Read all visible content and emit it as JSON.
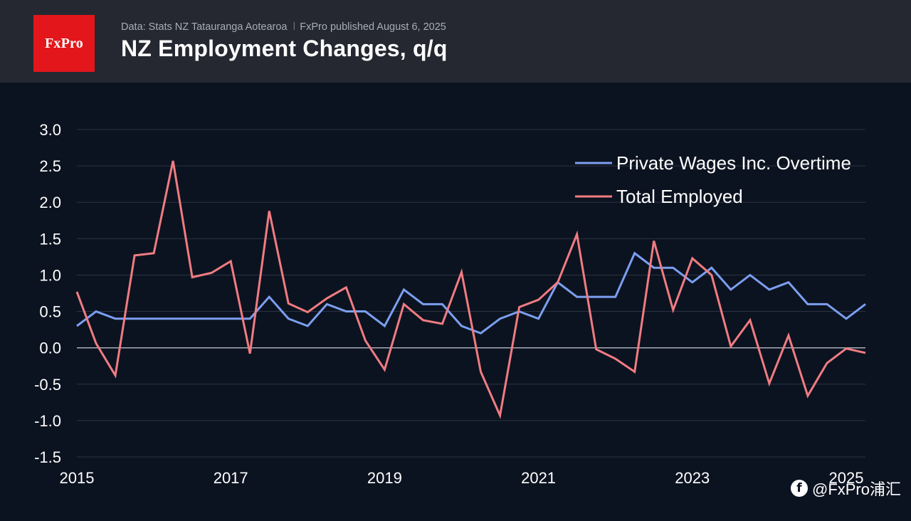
{
  "header": {
    "logo_text": "FxPro",
    "source": "Data: Stats NZ Tatauranga Aotearoa",
    "separator": "ǀ",
    "published": "FxPro published August 6, 2025",
    "title": "NZ Employment Changes, q/q"
  },
  "watermark": {
    "icon_glyph": "f",
    "text": "@FxPro浦汇"
  },
  "colors": {
    "background": "#0c1320",
    "header_bg": "#252831",
    "brand_red": "#e3161b",
    "series_wages": "#7b9ff0",
    "series_employed": "#f07c82",
    "grid": "#2a3342",
    "zero_line": "#b5bac2",
    "text": "#ffffff"
  },
  "chart_data": {
    "type": "line",
    "title": "NZ Employment Changes, q/q",
    "xlabel": "",
    "ylabel": "",
    "x_start": 2015.0,
    "x_step": 0.25,
    "xlim": [
      2015.0,
      2025.25
    ],
    "ylim": [
      -1.5,
      3.0
    ],
    "y_ticks": [
      "3.0",
      "2.5",
      "2.0",
      "1.5",
      "1.0",
      "0.5",
      "0.0",
      "-0.5",
      "-1.0",
      "-1.5"
    ],
    "y_tick_values": [
      3.0,
      2.5,
      2.0,
      1.5,
      1.0,
      0.5,
      0.0,
      -0.5,
      -1.0,
      -1.5
    ],
    "x_ticks": [
      "2015",
      "2017",
      "2019",
      "2021",
      "2023",
      "2025"
    ],
    "x_tick_values": [
      2015,
      2017,
      2019,
      2021,
      2023,
      2025
    ],
    "grid": true,
    "legend_position": "top-right",
    "series": [
      {
        "name": "Private Wages Inc. Overtime",
        "color": "#7b9ff0",
        "values": [
          0.3,
          0.5,
          0.4,
          0.4,
          0.4,
          0.4,
          0.4,
          0.4,
          0.4,
          0.4,
          0.7,
          0.4,
          0.3,
          0.6,
          0.5,
          0.5,
          0.3,
          0.8,
          0.6,
          0.6,
          0.3,
          0.2,
          0.4,
          0.5,
          0.4,
          0.9,
          0.7,
          0.7,
          0.7,
          1.3,
          1.1,
          1.1,
          0.9,
          1.1,
          0.8,
          1.0,
          0.8,
          0.9,
          0.6,
          0.6,
          0.4,
          0.6
        ]
      },
      {
        "name": "Total Employed",
        "color": "#f07c82",
        "values": [
          0.77,
          0.06,
          -0.38,
          1.27,
          1.3,
          2.57,
          0.97,
          1.03,
          1.19,
          -0.08,
          1.88,
          0.61,
          0.49,
          0.68,
          0.83,
          0.1,
          -0.3,
          0.6,
          0.38,
          0.33,
          1.04,
          -0.33,
          -0.93,
          0.56,
          0.66,
          0.9,
          1.56,
          -0.02,
          -0.15,
          -0.33,
          1.47,
          0.52,
          1.23,
          1.0,
          0.02,
          0.38,
          -0.49,
          0.17,
          -0.66,
          -0.21,
          -0.01,
          -0.07
        ]
      }
    ]
  }
}
